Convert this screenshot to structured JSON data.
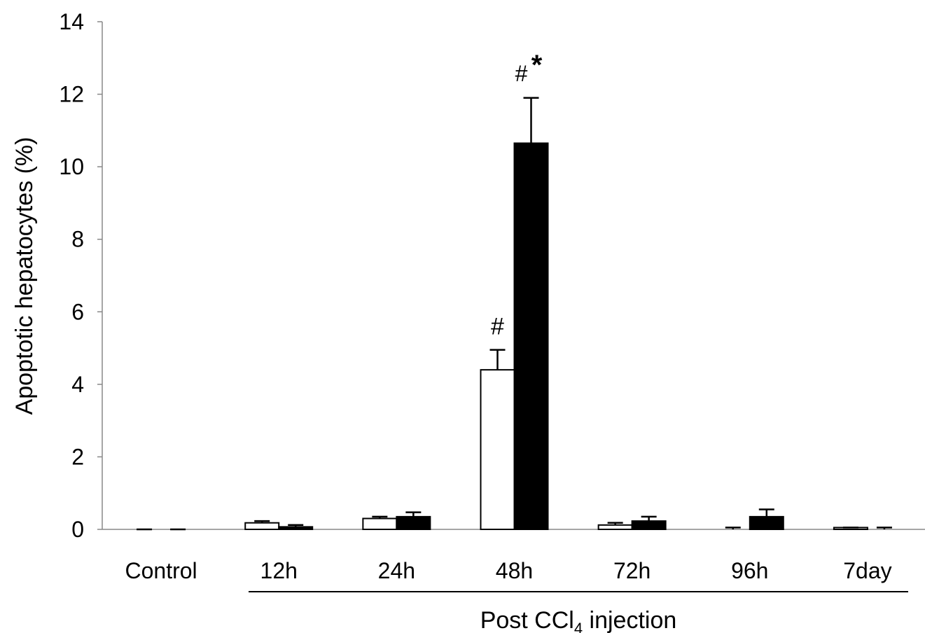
{
  "chart_data": {
    "type": "bar",
    "categories": [
      "Control",
      "12h",
      "24h",
      "48h",
      "72h",
      "96h",
      "7day"
    ],
    "series": [
      {
        "fill": "#ffffff",
        "values": [
          0.0,
          0.18,
          0.3,
          4.4,
          0.12,
          0.0,
          0.05
        ],
        "errors": [
          0.0,
          0.05,
          0.05,
          0.55,
          0.06,
          0.05,
          0.0
        ]
      },
      {
        "fill": "#000000",
        "values": [
          0.0,
          0.07,
          0.35,
          10.65,
          0.23,
          0.35,
          0.0
        ],
        "errors": [
          0.0,
          0.05,
          0.12,
          1.25,
          0.12,
          0.2,
          0.05
        ]
      }
    ],
    "ylabel": "Apoptotic hepatocytes (%)",
    "xlabel": {
      "main": "Post CCl",
      "subscript": "4",
      "tail": " injection"
    },
    "ylim": [
      0,
      14
    ],
    "yticks": [
      0,
      2,
      4,
      6,
      8,
      10,
      12,
      14
    ],
    "grid": false,
    "annotations": [
      {
        "category": "48h",
        "series": 0,
        "text": "#"
      },
      {
        "category": "48h",
        "series": 1,
        "text": "#",
        "star": "*"
      }
    ]
  }
}
